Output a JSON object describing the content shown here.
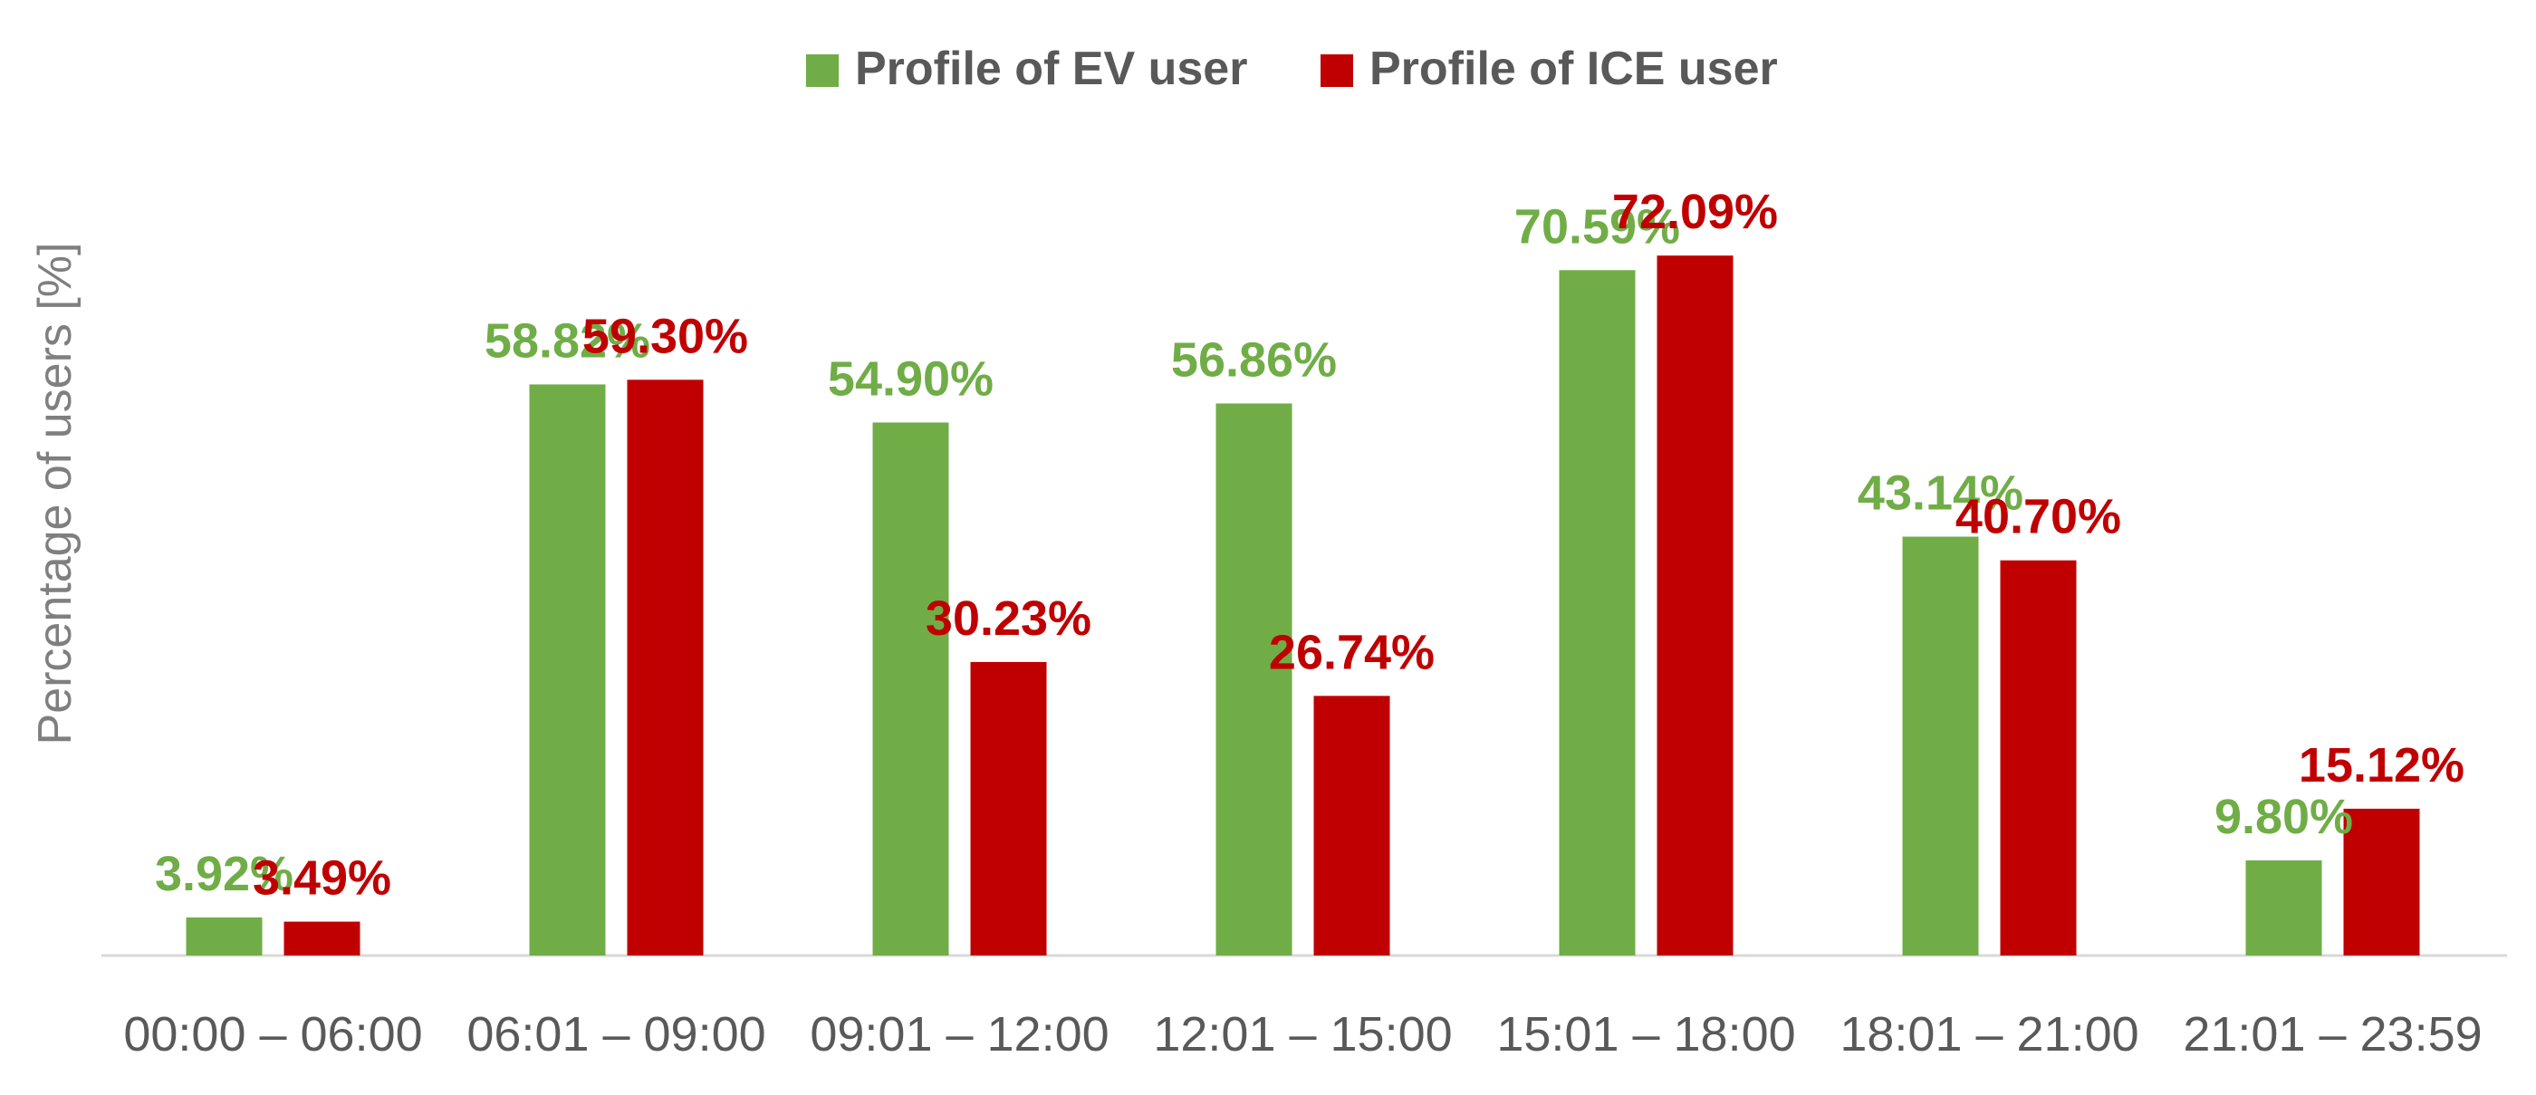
{
  "chart_data": {
    "type": "bar",
    "title": "",
    "xlabel": "",
    "ylabel": "Percentage of users [%]",
    "ylim": [
      0,
      80
    ],
    "grid": false,
    "legend_position": "top",
    "categories": [
      "00:00 – 06:00",
      "06:01 – 09:00",
      "09:01 – 12:00",
      "12:01 – 15:00",
      "15:01 – 18:00",
      "18:01 – 21:00",
      "21:01 – 23:59"
    ],
    "series": [
      {
        "name": "Profile of EV user",
        "color": "#70ad47",
        "values": [
          3.92,
          58.82,
          54.9,
          56.86,
          70.59,
          43.14,
          9.8
        ],
        "labels": [
          "3.92%",
          "58.82%",
          "54.90%",
          "56.86%",
          "70.59%",
          "43.14%",
          "9.80%"
        ]
      },
      {
        "name": "Profile of ICE user",
        "color": "#c00000",
        "values": [
          3.49,
          59.3,
          30.23,
          26.74,
          72.09,
          40.7,
          15.12
        ],
        "labels": [
          "3.49%",
          "59.30%",
          "30.23%",
          "26.74%",
          "72.09%",
          "40.70%",
          "15.12%"
        ]
      }
    ]
  }
}
